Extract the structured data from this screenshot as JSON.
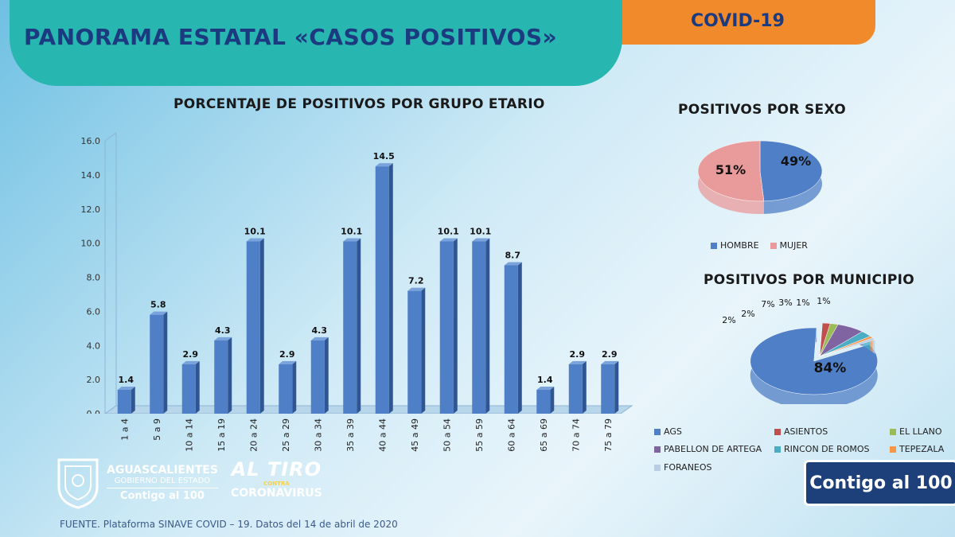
{
  "header": {
    "title": "PANORAMA ESTATAL «CASOS POSITIVOS»",
    "tag": "COVID-19"
  },
  "colors": {
    "teal": "#27b6b0",
    "orange": "#f08a2b",
    "navy": "#1b3a80",
    "bar": "#4f7fc6",
    "pink": "#e99a9a"
  },
  "chart_data": [
    {
      "type": "bar",
      "title": "PORCENTAJE DE POSITIVOS POR GRUPO ETARIO",
      "categories": [
        "1 a 4",
        "5 a 9",
        "10 a 14",
        "15 a 19",
        "20 a 24",
        "25 a 29",
        "30 a 34",
        "35 a 39",
        "40 a 44",
        "45 a 49",
        "50 a 54",
        "55 a 59",
        "60 a 64",
        "65 a 69",
        "70 a 74",
        "75 a 79"
      ],
      "values": [
        1.4,
        5.8,
        2.9,
        4.3,
        10.1,
        2.9,
        4.3,
        10.1,
        14.5,
        7.2,
        10.1,
        10.1,
        8.7,
        1.4,
        2.9,
        2.9
      ],
      "labels": [
        "1.4",
        "5.8",
        "2.9",
        "4.3",
        "10.1",
        "2.9",
        "4.3",
        "10.1",
        "14.5",
        "7.2",
        "10.1",
        "10.1",
        "8.7",
        "1.4",
        "2.9",
        "2.9"
      ],
      "ylim": [
        0,
        16
      ],
      "yticks": [
        "0.0",
        "2.0",
        "4.0",
        "6.0",
        "8.0",
        "10.0",
        "12.0",
        "14.0",
        "16.0"
      ],
      "xlabel": "",
      "ylabel": ""
    },
    {
      "type": "pie",
      "title": "POSITIVOS POR SEXO",
      "categories": [
        "HOMBRE",
        "MUJER"
      ],
      "values": [
        49,
        51
      ],
      "labels": [
        "49%",
        "51%"
      ],
      "colors": [
        "#4f7fc6",
        "#e99a9a"
      ]
    },
    {
      "type": "pie",
      "title": "POSITIVOS POR MUNICIPIO",
      "categories": [
        "AGS",
        "ASIENTOS",
        "EL LLANO",
        "PABELLON DE ARTEGA",
        "RINCON DE ROMOS",
        "TEPEZALA",
        "FORANEOS"
      ],
      "values": [
        84,
        2,
        2,
        7,
        3,
        1,
        1
      ],
      "labels": [
        "84%",
        "2%",
        "2%",
        "7%",
        "3%",
        "1%",
        "1%"
      ],
      "colors": [
        "#4f7fc6",
        "#c0504d",
        "#9bbb59",
        "#8064a2",
        "#4bacc6",
        "#f79646",
        "#b9cde5"
      ]
    }
  ],
  "logos": {
    "state_name": "AGUASCALIENTES",
    "state_sub": "GOBIERNO DEL ESTADO",
    "state_slogan": "Contigo al 100",
    "campaign_top": "AL TIRO",
    "campaign_mid": "CONTRA",
    "campaign_bottom": "CORONAVIRUS",
    "badge": "Contigo al 100"
  },
  "source": "FUENTE. Plataforma SINAVE COVID – 19. Datos del 14 de abril de 2020"
}
